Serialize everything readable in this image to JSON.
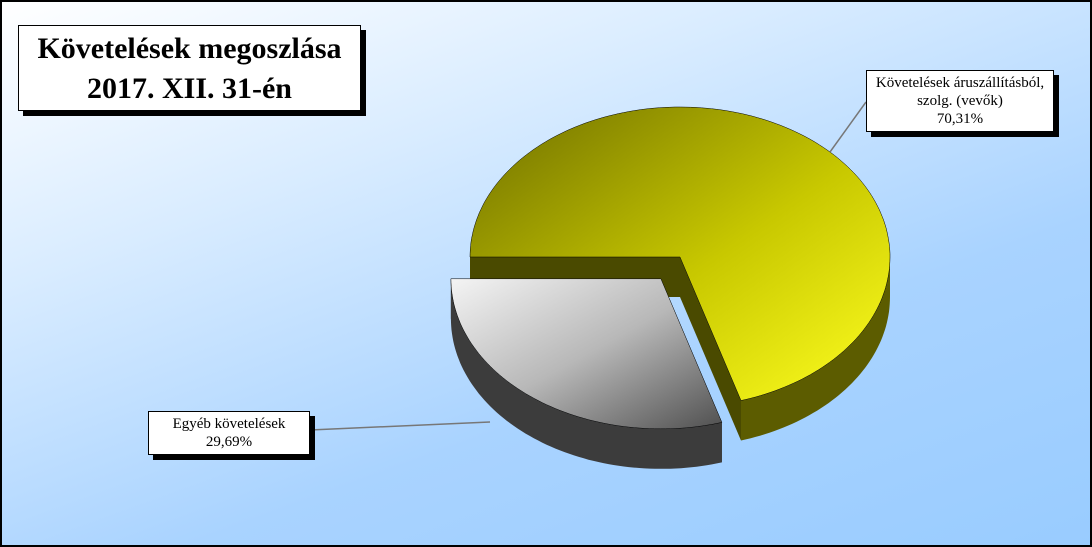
{
  "chart_data": {
    "type": "pie3d",
    "title": [
      "Követelések megoszlása",
      "2017. XII. 31-én"
    ],
    "categories": [
      "Követelések áruszállításból, szolg. (vevők)",
      "Egyéb követelések"
    ],
    "values": [
      70.31,
      29.69
    ],
    "value_labels": [
      "70,31%",
      "29,69%"
    ],
    "colors": [
      "#e0e000",
      "#a8a8a8"
    ],
    "exploded": [
      false,
      true
    ]
  }
}
